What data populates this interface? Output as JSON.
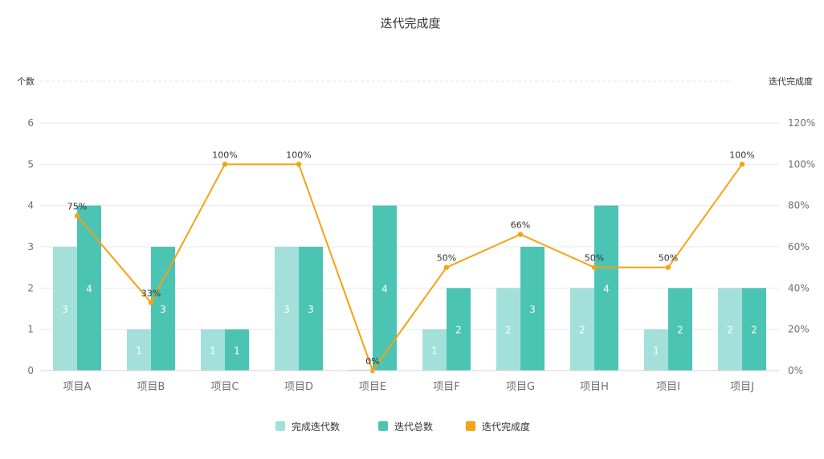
{
  "chart_data": {
    "type": "bar",
    "title": "迭代完成度",
    "ylabel": "个数",
    "y2label": "迭代完成度",
    "ylim": [
      0,
      6
    ],
    "y2lim": [
      0,
      120
    ],
    "yticks": [
      "0",
      "1",
      "2",
      "3",
      "4",
      "5",
      "6"
    ],
    "y2ticks": [
      "0%",
      "20%",
      "40%",
      "60%",
      "80%",
      "100%",
      "120%"
    ],
    "categories": [
      "项目A",
      "项目B",
      "项目C",
      "项目D",
      "项目E",
      "项目F",
      "项目G",
      "项目H",
      "项目I",
      "项目J"
    ],
    "series": [
      {
        "name": "完成迭代数",
        "type": "bar",
        "color": "#a3e0da",
        "values": [
          3,
          1,
          1,
          3,
          0,
          1,
          2,
          2,
          1,
          2
        ]
      },
      {
        "name": "迭代总数",
        "type": "bar",
        "color": "#4bc4b3",
        "values": [
          4,
          3,
          1,
          3,
          4,
          2,
          3,
          4,
          2,
          2
        ]
      },
      {
        "name": "迭代完成度",
        "type": "line",
        "axis": "right",
        "color": "#f5a214",
        "values": [
          75,
          33,
          100,
          100,
          0,
          50,
          66,
          50,
          50,
          100
        ],
        "labels": [
          "75%",
          "33%",
          "100%",
          "100%",
          "0%",
          "50%",
          "66%",
          "50%",
          "50%",
          "100%"
        ]
      }
    ],
    "legend_position": "bottom-center",
    "grid": true
  }
}
